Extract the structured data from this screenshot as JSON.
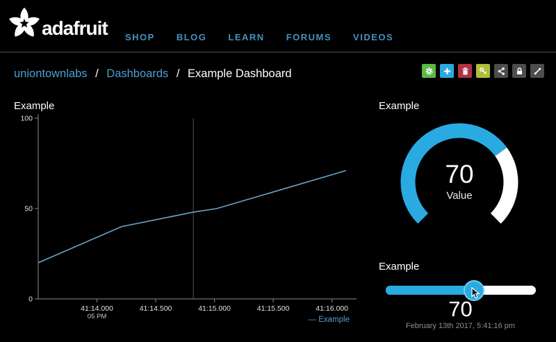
{
  "header": {
    "brand": "adafruit",
    "nav": [
      "SHOP",
      "BLOG",
      "LEARN",
      "FORUMS",
      "VIDEOS"
    ]
  },
  "breadcrumb": {
    "separator": "/",
    "items": [
      {
        "label": "uniontownlabs"
      },
      {
        "label": "Dashboards"
      },
      {
        "label": "Example Dashboard"
      }
    ]
  },
  "toolbar": {
    "buttons": [
      {
        "name": "settings",
        "icon": "gear-icon",
        "color": "#5cb944"
      },
      {
        "name": "create",
        "icon": "plus-icon",
        "color": "#29abe2"
      },
      {
        "name": "delete",
        "icon": "trash-icon",
        "color": "#b23245"
      },
      {
        "name": "key",
        "icon": "key-icon",
        "color": "#b2bd36"
      },
      {
        "name": "share",
        "icon": "share-icon",
        "color": "#4d4d4d"
      },
      {
        "name": "lock",
        "icon": "lock-icon",
        "color": "#4d4d4d"
      },
      {
        "name": "resize",
        "icon": "expand-icon",
        "color": "#4d4d4d"
      }
    ]
  },
  "colors": {
    "background": "#000000",
    "accent_blue": "#29abe2",
    "link_blue": "#4f9ed2",
    "chart_line": "#6ba3c9"
  },
  "chart_data": [
    {
      "type": "line",
      "title": "Example",
      "xlabel": "",
      "ylabel": "",
      "ylim": [
        0,
        100
      ],
      "yticks": [
        0,
        50,
        100
      ],
      "xlim": [
        13.5,
        16.15
      ],
      "xticks": [
        {
          "x": 14.0,
          "label": "41:14.000",
          "sublabel": "05 PM"
        },
        {
          "x": 14.5,
          "label": "41:14.500"
        },
        {
          "x": 15.0,
          "label": "41:15.000"
        },
        {
          "x": 15.5,
          "label": "41:15.500"
        },
        {
          "x": 16.0,
          "label": "41:16.000"
        }
      ],
      "cursor_x": 14.82,
      "grid": "off",
      "legend_position": "bottom-right",
      "series": [
        {
          "name": "Example",
          "color": "#6ba3c9",
          "points": [
            [
              13.5,
              20
            ],
            [
              14.21,
              40
            ],
            [
              14.82,
              48
            ],
            [
              15.02,
              50
            ],
            [
              16.12,
              71
            ]
          ]
        }
      ]
    },
    {
      "type": "gauge",
      "title": "Example",
      "value": 70,
      "value_label": "Value",
      "min": 0,
      "max": 100,
      "arc_degrees": 270,
      "fill_color": "#29abe2",
      "track_color": "#ffffff"
    },
    {
      "type": "slider",
      "title": "Example",
      "value": 70,
      "percent": 59,
      "fill_color": "#29abe2",
      "track_color": "#ffffff",
      "timestamp": "February 13th 2017, 5:41:16 pm"
    }
  ]
}
